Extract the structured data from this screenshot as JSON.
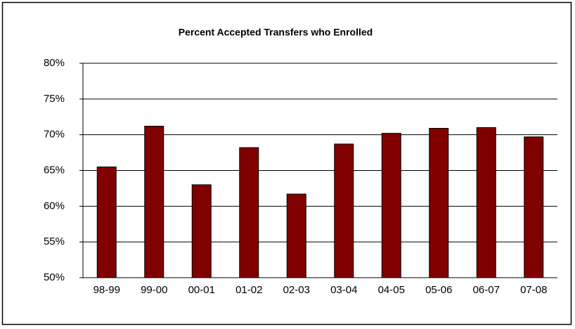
{
  "chart_data": {
    "type": "bar",
    "title": "Percent Accepted Transfers who Enrolled",
    "categories": [
      "98-99",
      "99-00",
      "00-01",
      "01-02",
      "02-03",
      "03-04",
      "04-05",
      "05-06",
      "06-07",
      "07-08"
    ],
    "values": [
      65.5,
      71.2,
      63.0,
      68.2,
      61.7,
      68.7,
      70.2,
      70.9,
      71.0,
      69.7
    ],
    "color": "#800000",
    "ylim": [
      50,
      80
    ],
    "yticks": [
      {
        "value": 50,
        "label": "50%"
      },
      {
        "value": 55,
        "label": "55%"
      },
      {
        "value": 60,
        "label": "60%"
      },
      {
        "value": 65,
        "label": "65%"
      },
      {
        "value": 70,
        "label": "70%"
      },
      {
        "value": 75,
        "label": "75%"
      },
      {
        "value": 80,
        "label": "80%"
      }
    ],
    "grid": true
  }
}
